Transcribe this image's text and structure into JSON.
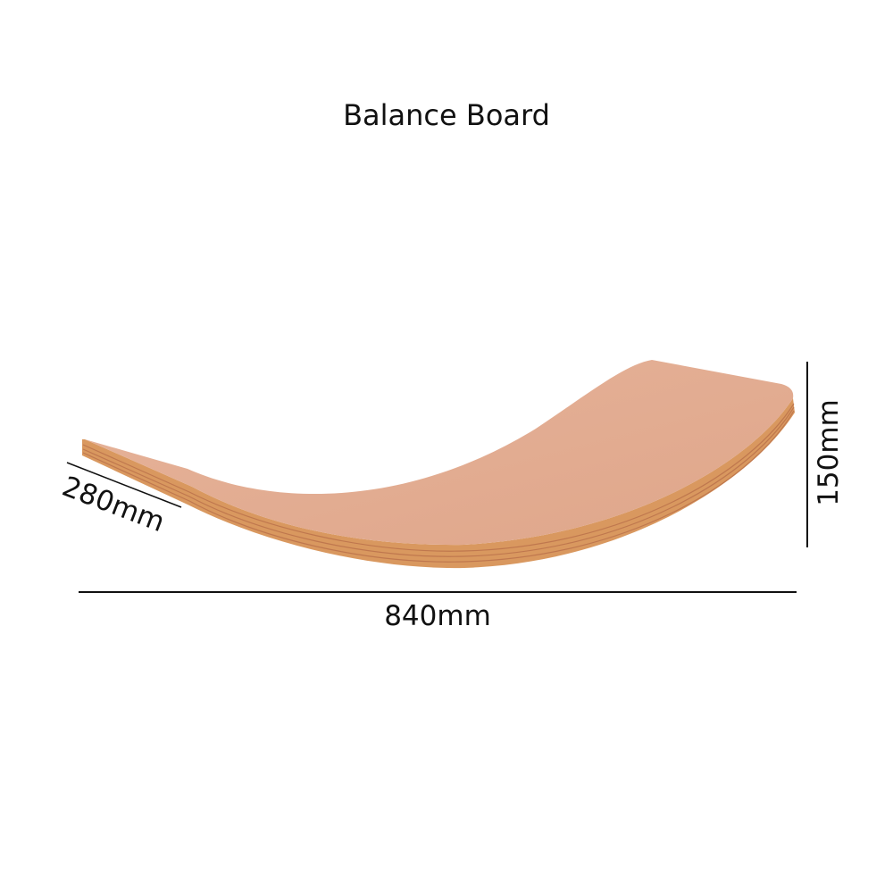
{
  "title": "Balance Board",
  "dimensions": {
    "length": "840mm",
    "height": "150mm",
    "width": "280mm"
  },
  "colors": {
    "board_surface": "#E3AC90",
    "board_edge": "#D9955F",
    "line": "#111111"
  }
}
